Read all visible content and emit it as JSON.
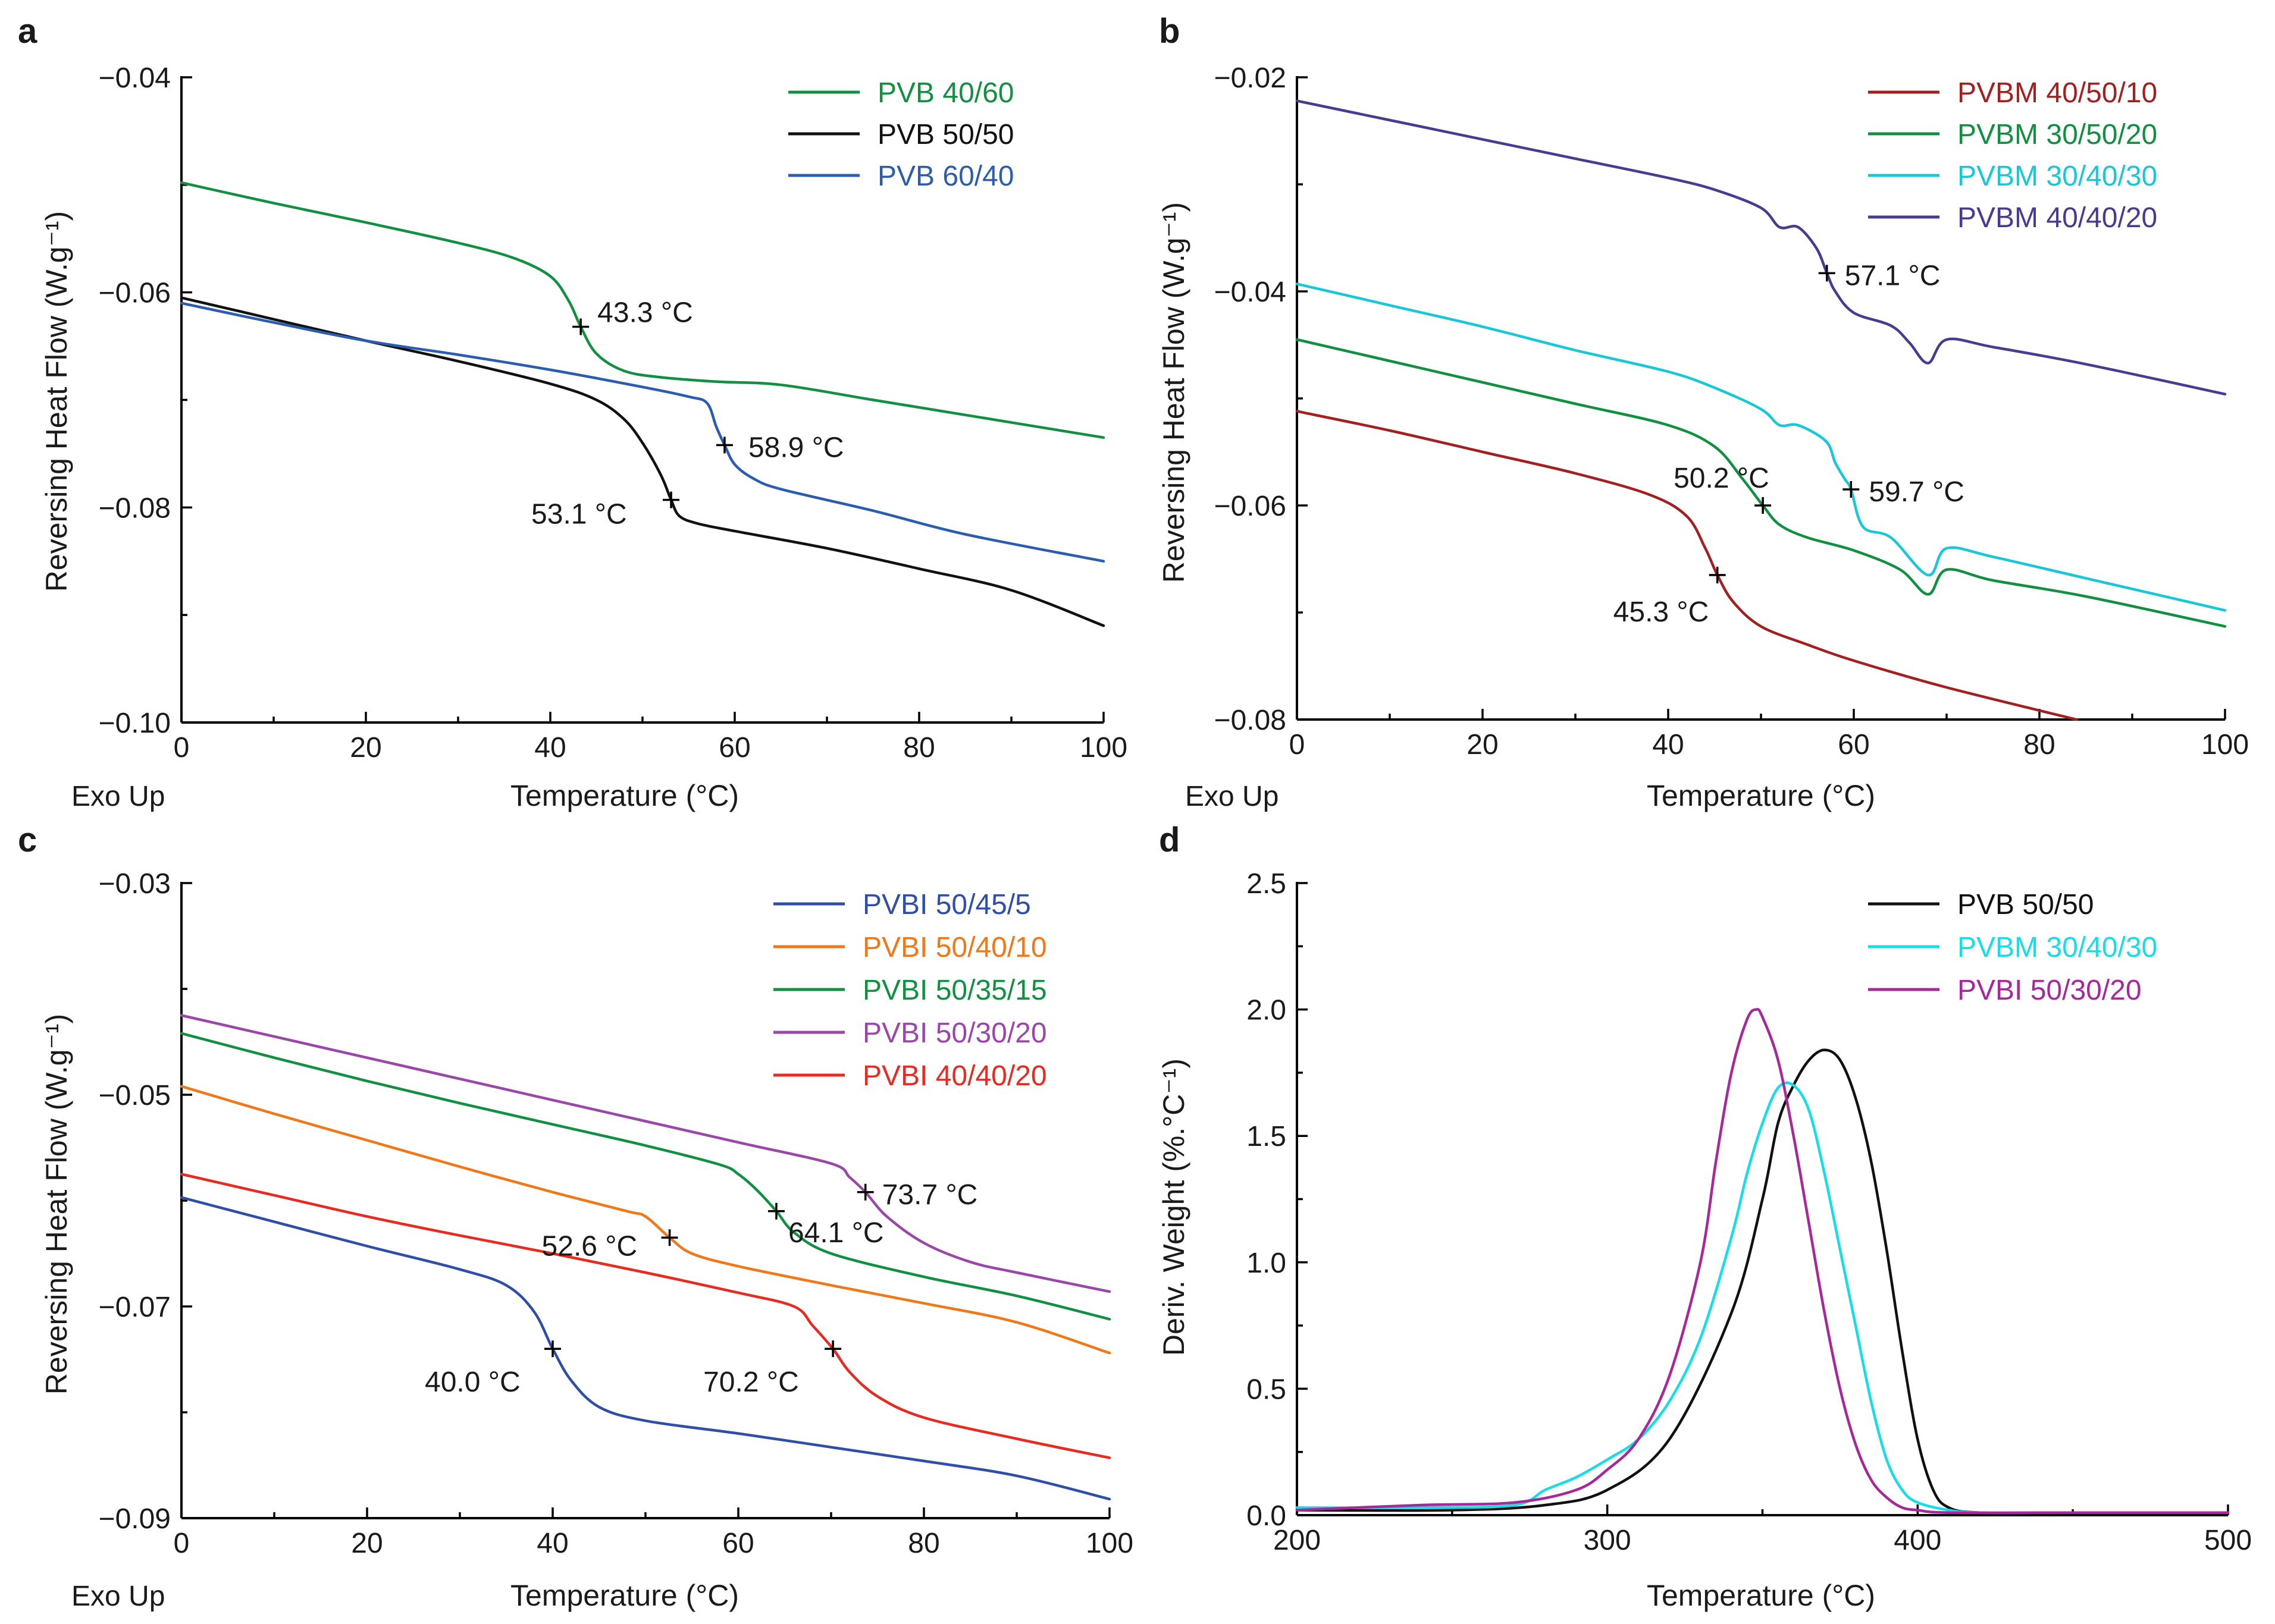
{
  "figure": {
    "exo_label": "Exo Up"
  },
  "chart_data": [
    {
      "panel": "a",
      "type": "line",
      "xlabel": "Temperature (°C)",
      "ylabel": "Reversing Heat Flow (W.g⁻¹)",
      "xlim": [
        0,
        100
      ],
      "ylim": [
        -0.1,
        -0.04
      ],
      "xticks": [
        0,
        20,
        40,
        60,
        80,
        100
      ],
      "yticks": [
        -0.1,
        -0.08,
        -0.06,
        -0.04
      ],
      "xtick_labels": [
        "0",
        "20",
        "40",
        "60",
        "80",
        "100"
      ],
      "ytick_labels": [
        "−0.10",
        "−0.08",
        "−0.06",
        "−0.04"
      ],
      "legend_position": "top-right",
      "series": [
        {
          "name": "PVB 40/60",
          "color": "#109040",
          "x": [
            0,
            10,
            20,
            30,
            36,
            40,
            42,
            43.3,
            45,
            48,
            52,
            58,
            65,
            75,
            85,
            100
          ],
          "y": [
            -0.0498,
            -0.0517,
            -0.0535,
            -0.0554,
            -0.0568,
            -0.0585,
            -0.0608,
            -0.0632,
            -0.0657,
            -0.0673,
            -0.0679,
            -0.0683,
            -0.0686,
            -0.07,
            -0.0714,
            -0.0735
          ]
        },
        {
          "name": "PVB 50/50",
          "color": "#111111",
          "x": [
            0,
            10,
            20,
            30,
            40,
            45,
            48,
            50,
            52,
            53.1,
            54,
            56,
            60,
            70,
            80,
            90,
            100
          ],
          "y": [
            -0.0605,
            -0.0625,
            -0.0645,
            -0.0664,
            -0.0685,
            -0.07,
            -0.0718,
            -0.074,
            -0.077,
            -0.0793,
            -0.0808,
            -0.0815,
            -0.0822,
            -0.0838,
            -0.0857,
            -0.0877,
            -0.091
          ]
        },
        {
          "name": "PVB 60/40",
          "color": "#2a5cb0",
          "x": [
            0,
            10,
            20,
            30,
            40,
            50,
            55,
            57,
            58,
            58.9,
            60,
            62,
            65,
            75,
            85,
            100
          ],
          "y": [
            -0.061,
            -0.0628,
            -0.0645,
            -0.0658,
            -0.0672,
            -0.0688,
            -0.0697,
            -0.0703,
            -0.0725,
            -0.0742,
            -0.076,
            -0.0773,
            -0.0783,
            -0.0803,
            -0.0825,
            -0.085
          ]
        }
      ],
      "annotations": [
        {
          "text": "43.3 °C",
          "x": 43.3,
          "y": -0.0632
        },
        {
          "text": "58.9 °C",
          "x": 58.9,
          "y": -0.0742
        },
        {
          "text": "53.1 °C",
          "x": 53.1,
          "y": -0.0793
        }
      ]
    },
    {
      "panel": "b",
      "type": "line",
      "xlabel": "Temperature (°C)",
      "ylabel": "Reversing Heat Flow (W.g⁻¹)",
      "xlim": [
        0,
        100
      ],
      "ylim": [
        -0.08,
        -0.02
      ],
      "xticks": [
        0,
        20,
        40,
        60,
        80,
        100
      ],
      "yticks": [
        -0.08,
        -0.06,
        -0.04,
        -0.02
      ],
      "xtick_labels": [
        "0",
        "20",
        "40",
        "60",
        "80",
        "100"
      ],
      "ytick_labels": [
        "−0.08",
        "−0.06",
        "−0.04",
        "−0.02"
      ],
      "legend_position": "top-right",
      "series": [
        {
          "name": "PVBM 40/50/10",
          "color": "#a32020",
          "x": [
            0,
            10,
            20,
            30,
            38,
            42,
            44,
            45.3,
            47,
            50,
            55,
            60,
            70,
            84
          ],
          "y": [
            -0.0512,
            -0.053,
            -0.055,
            -0.057,
            -0.059,
            -0.061,
            -0.064,
            -0.0665,
            -0.069,
            -0.0713,
            -0.073,
            -0.0745,
            -0.077,
            -0.08
          ]
        },
        {
          "name": "PVBM 30/50/20",
          "color": "#109040",
          "x": [
            0,
            10,
            20,
            30,
            40,
            45,
            48,
            50.2,
            52,
            55,
            60,
            65,
            68,
            70,
            75,
            85,
            100
          ],
          "y": [
            -0.0445,
            -0.0465,
            -0.0485,
            -0.0505,
            -0.0525,
            -0.0545,
            -0.0575,
            -0.06,
            -0.0618,
            -0.063,
            -0.0642,
            -0.066,
            -0.0683,
            -0.066,
            -0.067,
            -0.0685,
            -0.0713
          ]
        },
        {
          "name": "PVBM 30/40/30",
          "color": "#18c8d8",
          "x": [
            0,
            10,
            20,
            30,
            40,
            45,
            50,
            52,
            54,
            57,
            58,
            59,
            59.7,
            61,
            64,
            68,
            70,
            75,
            85,
            100
          ],
          "y": [
            -0.0393,
            -0.0413,
            -0.0433,
            -0.0455,
            -0.0475,
            -0.049,
            -0.051,
            -0.0525,
            -0.0525,
            -0.054,
            -0.056,
            -0.0575,
            -0.0585,
            -0.062,
            -0.063,
            -0.0665,
            -0.064,
            -0.0648,
            -0.0668,
            -0.0698
          ]
        },
        {
          "name": "PVBM 40/40/20",
          "color": "#4a3a90",
          "x": [
            0,
            10,
            20,
            30,
            40,
            45,
            50,
            52,
            54,
            56,
            57.1,
            58,
            60,
            64,
            66,
            68,
            70,
            75,
            85,
            100
          ],
          "y": [
            -0.0222,
            -0.024,
            -0.0258,
            -0.0276,
            -0.0294,
            -0.0305,
            -0.0322,
            -0.034,
            -0.034,
            -0.036,
            -0.0383,
            -0.04,
            -0.042,
            -0.0432,
            -0.0448,
            -0.0467,
            -0.0445,
            -0.0452,
            -0.0468,
            -0.0496
          ]
        }
      ],
      "annotations": [
        {
          "text": "57.1 °C",
          "x": 57.1,
          "y": -0.0383
        },
        {
          "text": "50.2 °C",
          "x": 50.2,
          "y": -0.06
        },
        {
          "text": "59.7 °C",
          "x": 59.7,
          "y": -0.0585
        },
        {
          "text": "45.3 °C",
          "x": 45.3,
          "y": -0.0665
        }
      ]
    },
    {
      "panel": "c",
      "type": "line",
      "xlabel": "Temperature (°C)",
      "ylabel": "Reversing Heat Flow (W.g⁻¹)",
      "xlim": [
        0,
        100
      ],
      "ylim": [
        -0.09,
        -0.03
      ],
      "xticks": [
        0,
        20,
        40,
        60,
        80,
        100
      ],
      "yticks": [
        -0.09,
        -0.07,
        -0.05,
        -0.03
      ],
      "xtick_labels": [
        "0",
        "20",
        "40",
        "60",
        "80",
        "100"
      ],
      "ytick_labels": [
        "−0.09",
        "−0.07",
        "−0.05",
        "−0.03"
      ],
      "legend_position": "top-right",
      "series": [
        {
          "name": "PVBI 50/45/5",
          "color": "#2e4ea8",
          "x": [
            0,
            10,
            20,
            30,
            35,
            38,
            40,
            42,
            45,
            50,
            60,
            70,
            80,
            90,
            100
          ],
          "y": [
            -0.0597,
            -0.062,
            -0.0643,
            -0.0665,
            -0.068,
            -0.0705,
            -0.074,
            -0.077,
            -0.0795,
            -0.0808,
            -0.082,
            -0.0833,
            -0.0846,
            -0.086,
            -0.0882
          ]
        },
        {
          "name": "PVBI 50/40/10",
          "color": "#f07818",
          "x": [
            0,
            10,
            20,
            30,
            40,
            48,
            50,
            52.6,
            55,
            60,
            70,
            80,
            90,
            100
          ],
          "y": [
            -0.0492,
            -0.0518,
            -0.0543,
            -0.0568,
            -0.0592,
            -0.061,
            -0.0615,
            -0.0635,
            -0.065,
            -0.0662,
            -0.068,
            -0.0697,
            -0.0715,
            -0.0744
          ]
        },
        {
          "name": "PVBI 50/35/15",
          "color": "#109040",
          "x": [
            0,
            10,
            20,
            30,
            40,
            50,
            58,
            60,
            62,
            64.1,
            66,
            70,
            80,
            90,
            100
          ],
          "y": [
            -0.0442,
            -0.0465,
            -0.0487,
            -0.0508,
            -0.0528,
            -0.0548,
            -0.0566,
            -0.0575,
            -0.059,
            -0.061,
            -0.063,
            -0.065,
            -0.0672,
            -0.069,
            -0.0712
          ]
        },
        {
          "name": "PVBI 50/30/20",
          "color": "#9a48a8",
          "x": [
            0,
            10,
            20,
            30,
            40,
            50,
            60,
            70,
            72,
            73.7,
            76,
            80,
            85,
            90,
            100
          ],
          "y": [
            -0.0425,
            -0.0445,
            -0.0465,
            -0.0485,
            -0.0505,
            -0.0525,
            -0.0545,
            -0.0565,
            -0.0578,
            -0.0592,
            -0.0615,
            -0.064,
            -0.0658,
            -0.0668,
            -0.0686
          ]
        },
        {
          "name": "PVBI 40/40/20",
          "color": "#e82a20",
          "x": [
            0,
            10,
            20,
            30,
            40,
            50,
            60,
            66,
            68,
            70.2,
            72,
            75,
            80,
            90,
            100
          ],
          "y": [
            -0.0575,
            -0.0595,
            -0.0615,
            -0.0633,
            -0.065,
            -0.0668,
            -0.0687,
            -0.07,
            -0.0718,
            -0.074,
            -0.0762,
            -0.0785,
            -0.0805,
            -0.0825,
            -0.0843
          ]
        }
      ],
      "annotations": [
        {
          "text": "73.7 °C",
          "x": 73.7,
          "y": -0.0592
        },
        {
          "text": "52.6 °C",
          "x": 52.6,
          "y": -0.0635
        },
        {
          "text": "64.1 °C",
          "x": 64.1,
          "y": -0.061
        },
        {
          "text": "40.0 °C",
          "x": 40.0,
          "y": -0.074
        },
        {
          "text": "70.2 °C",
          "x": 70.2,
          "y": -0.074
        }
      ]
    },
    {
      "panel": "d",
      "type": "line",
      "xlabel": "Temperature (°C)",
      "ylabel": "Deriv. Weight (%.°C⁻¹)",
      "xlim": [
        200,
        500
      ],
      "ylim": [
        0.0,
        2.5
      ],
      "xticks": [
        200,
        300,
        400,
        500
      ],
      "yticks": [
        0.0,
        0.5,
        1.0,
        1.5,
        2.0,
        2.5
      ],
      "xtick_labels": [
        "200",
        "300",
        "400",
        "500"
      ],
      "ytick_labels": [
        "0.0",
        "0.5",
        "1.0",
        "1.5",
        "2.0",
        "2.5"
      ],
      "legend_position": "top-right",
      "series": [
        {
          "name": "PVB 50/50",
          "color": "#111111",
          "x": [
            200,
            250,
            280,
            300,
            320,
            340,
            350,
            355,
            360,
            365,
            370,
            375,
            380,
            385,
            390,
            395,
            400,
            405,
            410,
            420,
            450,
            500
          ],
          "y": [
            0.02,
            0.02,
            0.04,
            0.1,
            0.3,
            0.8,
            1.25,
            1.55,
            1.7,
            1.8,
            1.84,
            1.8,
            1.65,
            1.4,
            1.05,
            0.65,
            0.3,
            0.1,
            0.03,
            0.01,
            0.01,
            0.01
          ]
        },
        {
          "name": "PVBM 30/40/30",
          "color": "#18dce8",
          "x": [
            200,
            240,
            270,
            280,
            290,
            300,
            310,
            320,
            330,
            340,
            345,
            350,
            355,
            360,
            365,
            370,
            375,
            380,
            385,
            390,
            395,
            400,
            410,
            420,
            450,
            500
          ],
          "y": [
            0.03,
            0.03,
            0.04,
            0.1,
            0.15,
            0.22,
            0.3,
            0.45,
            0.7,
            1.1,
            1.35,
            1.55,
            1.69,
            1.7,
            1.6,
            1.35,
            1.05,
            0.75,
            0.45,
            0.22,
            0.1,
            0.05,
            0.02,
            0.01,
            0.01,
            0.01
          ]
        },
        {
          "name": "PVBI 50/30/20",
          "color": "#a8289a",
          "x": [
            200,
            240,
            270,
            290,
            300,
            310,
            320,
            330,
            335,
            340,
            345,
            348,
            350,
            355,
            360,
            365,
            370,
            375,
            380,
            385,
            390,
            395,
            400,
            410,
            450,
            500
          ],
          "y": [
            0.02,
            0.04,
            0.05,
            0.1,
            0.18,
            0.3,
            0.55,
            1.0,
            1.4,
            1.75,
            1.96,
            2.0,
            1.97,
            1.8,
            1.5,
            1.15,
            0.8,
            0.5,
            0.28,
            0.14,
            0.07,
            0.03,
            0.02,
            0.01,
            0.01,
            0.01
          ]
        }
      ],
      "annotations": []
    }
  ]
}
